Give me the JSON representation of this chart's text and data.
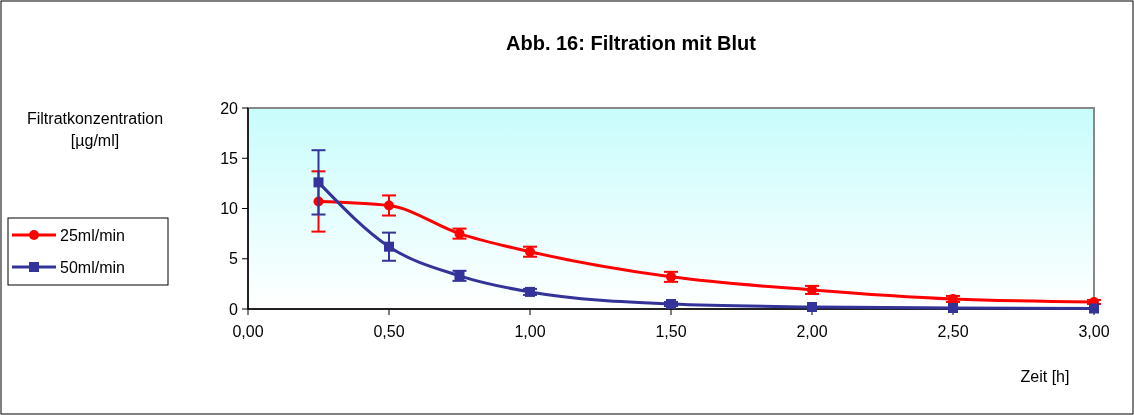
{
  "chart_data": {
    "type": "line",
    "title": "Abb. 16: Filtration mit Blut",
    "ylabel": "Filtratkonzentration\n[µg/ml]",
    "xlabel": "Zeit [h]",
    "x": [
      0.25,
      0.5,
      0.75,
      1.0,
      1.5,
      2.0,
      2.5,
      3.0
    ],
    "series": [
      {
        "name": "25ml/min",
        "color": "#ff0000",
        "marker": "circle",
        "values": [
          10.7,
          10.3,
          7.5,
          5.7,
          3.2,
          1.9,
          1.0,
          0.7
        ],
        "errors": [
          3,
          1,
          0.5,
          0.5,
          0.5,
          0.4,
          0.3,
          0.2
        ]
      },
      {
        "name": "50ml/min",
        "color": "#333399",
        "marker": "square",
        "values": [
          12.6,
          6.2,
          3.3,
          1.7,
          0.5,
          0.2,
          0.1,
          0.05
        ],
        "errors": [
          3.2,
          1.4,
          0.5,
          0.3,
          0.2,
          null,
          null,
          null
        ]
      }
    ],
    "xlim": [
      0,
      3
    ],
    "xticks": [
      {
        "value": 0,
        "label": "0,00"
      },
      {
        "value": 0.5,
        "label": "0,50"
      },
      {
        "value": 1,
        "label": "1,00"
      },
      {
        "value": 1.5,
        "label": "1,50"
      },
      {
        "value": 2,
        "label": "2,00"
      },
      {
        "value": 2.5,
        "label": "2,50"
      },
      {
        "value": 3,
        "label": "3,00"
      }
    ],
    "ylim": [
      0,
      20
    ],
    "yticks": [
      0,
      5,
      10,
      15,
      20
    ],
    "legend": "left",
    "grid": false
  }
}
